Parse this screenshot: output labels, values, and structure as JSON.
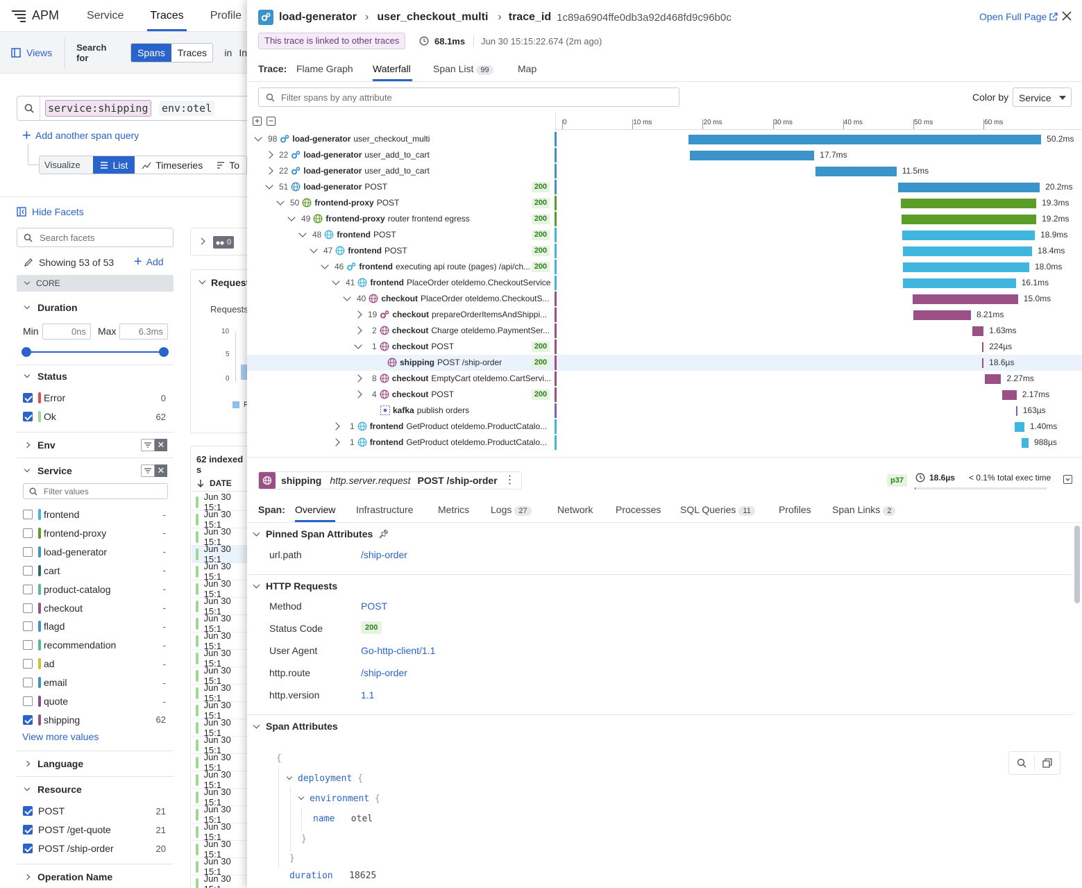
{
  "left": {
    "app_name": "APM",
    "nav": [
      "Service",
      "Traces",
      "Profile"
    ],
    "views_label": "Views",
    "search_for_label": "Search for",
    "search_for_options": [
      "Spans",
      "Traces"
    ],
    "in_label": "in",
    "in_value": "In",
    "query_tokens": [
      {
        "key": "service",
        "value": "shipping"
      },
      {
        "key": "env",
        "value": "otel"
      }
    ],
    "add_query_label": "Add another span query",
    "visualize_as_label": "Visualize as",
    "visualize_options": [
      "List",
      "Timeseries",
      "To"
    ],
    "hide_facets_label": "Hide Facets",
    "search_facets_placeholder": "Search facets",
    "showing_label": "Showing 53 of 53",
    "add_label": "Add",
    "core_label": "CORE",
    "duration": {
      "title": "Duration",
      "min_label": "Min",
      "min_value": "0ns",
      "max_label": "Max",
      "max_value": "6.3ms"
    },
    "status": {
      "title": "Status",
      "items": [
        {
          "label": "Error",
          "count": "0",
          "color": "#e5484d",
          "checked": true
        },
        {
          "label": "Ok",
          "count": "62",
          "color": "#9ed893",
          "checked": true
        }
      ]
    },
    "env_title": "Env",
    "service": {
      "title": "Service",
      "filter_placeholder": "Filter values",
      "items": [
        {
          "label": "frontend",
          "count": "-",
          "color": "#40b5de",
          "checked": false
        },
        {
          "label": "frontend-proxy",
          "count": "-",
          "color": "#5c9c28",
          "checked": false
        },
        {
          "label": "load-generator",
          "count": "-",
          "color": "#3a93c9",
          "checked": false
        },
        {
          "label": "cart",
          "count": "-",
          "color": "#2f6a6a",
          "checked": false
        },
        {
          "label": "product-catalog",
          "count": "-",
          "color": "#58b8a0",
          "checked": false
        },
        {
          "label": "checkout",
          "count": "-",
          "color": "#9a4f86",
          "checked": false
        },
        {
          "label": "flagd",
          "count": "-",
          "color": "#3a93c9",
          "checked": false
        },
        {
          "label": "recommendation",
          "count": "-",
          "color": "#58b8a0",
          "checked": false
        },
        {
          "label": "ad",
          "count": "-",
          "color": "#c8c52f",
          "checked": false
        },
        {
          "label": "email",
          "count": "-",
          "color": "#3a93c9",
          "checked": false
        },
        {
          "label": "quote",
          "count": "-",
          "color": "#8a4a9a",
          "checked": false
        },
        {
          "label": "shipping",
          "count": "62",
          "color": "#9a4f86",
          "checked": true
        }
      ],
      "view_more": "View more values"
    },
    "language_title": "Language",
    "resource": {
      "title": "Resource",
      "items": [
        {
          "label": "POST",
          "count": "21",
          "checked": true
        },
        {
          "label": "POST /get-quote",
          "count": "21",
          "checked": true
        },
        {
          "label": "POST /ship-order",
          "count": "20",
          "checked": true
        }
      ]
    },
    "operation_name_title": "Operation Name",
    "mid": {
      "badge_count": "0",
      "requests_title": "Requests",
      "requests_label": "Requests",
      "y_ticks": [
        "10",
        "5",
        "0"
      ],
      "legend": "R",
      "indexed_label": "62 indexed s",
      "date_header": "DATE",
      "date_rows": [
        "Jun 30 15:1",
        "Jun 30 15:1",
        "Jun 30 15:1",
        "Jun 30 15:1",
        "Jun 30 15:1",
        "Jun 30 15:1",
        "Jun 30 15:1",
        "Jun 30 15:1",
        "Jun 30 15:1",
        "Jun 30 15:1",
        "Jun 30 15:1",
        "Jun 30 15:1",
        "Jun 30 15:1",
        "Jun 30 15:1",
        "Jun 30 15:1",
        "Jun 30 15:1",
        "Jun 30 15:1",
        "Jun 30 15:1",
        "Jun 30 15:1",
        "Jun 30 15:1",
        "Jun 30 15:1",
        "Jun 30 15:1",
        "Jun 30 15:1",
        "Jun 30 15:1"
      ]
    }
  },
  "panel": {
    "service": "load-generator",
    "operation": "user_checkout_multi",
    "trace_id_label": "trace_id",
    "trace_id": "1c89a6904ffe0db3a92d468fd9c96b0c",
    "open_full_page": "Open Full Page",
    "linked_notice": "This trace is linked to other traces",
    "duration": "68.1ms",
    "timestamp": "Jun 30 15:15:22.674 (2m ago)",
    "trace_label": "Trace:",
    "tabs": [
      {
        "label": "Flame Graph"
      },
      {
        "label": "Waterfall"
      },
      {
        "label": "Span List",
        "badge": "99"
      },
      {
        "label": "Map"
      }
    ],
    "filter_placeholder": "Filter spans by any attribute",
    "color_by_label": "Color by",
    "color_by_value": "Service",
    "axis_ticks": [
      "0",
      "10 ms",
      "20 ms",
      "30 ms",
      "40 ms",
      "50 ms",
      "60 ms"
    ],
    "spans": [
      {
        "depth": 0,
        "exp": "down",
        "count": "98",
        "svc": "load-generator",
        "res": "user_checkout_multi",
        "status": "",
        "icon": "gears",
        "color": "#3a93c9",
        "start": 18.0,
        "end": 68.2,
        "dur": "50.2ms"
      },
      {
        "depth": 1,
        "exp": "right",
        "count": "22",
        "svc": "load-generator",
        "res": "user_add_to_cart",
        "status": "",
        "icon": "gears",
        "color": "#3a93c9",
        "start": 18.2,
        "end": 35.9,
        "dur": "17.7ms"
      },
      {
        "depth": 1,
        "exp": "right",
        "count": "22",
        "svc": "load-generator",
        "res": "user_add_to_cart",
        "status": "",
        "icon": "gears",
        "color": "#3a93c9",
        "start": 36.1,
        "end": 47.6,
        "dur": "11.5ms"
      },
      {
        "depth": 1,
        "exp": "down",
        "count": "51",
        "svc": "load-generator",
        "res": "POST",
        "status": "200",
        "icon": "globe",
        "color": "#3a93c9",
        "start": 47.8,
        "end": 68.0,
        "dur": "20.2ms"
      },
      {
        "depth": 2,
        "exp": "down",
        "count": "50",
        "svc": "frontend-proxy",
        "res": "POST",
        "status": "200",
        "icon": "globe",
        "color": "#5c9c28",
        "start": 48.2,
        "end": 67.5,
        "dur": "19.3ms"
      },
      {
        "depth": 3,
        "exp": "down",
        "count": "49",
        "svc": "frontend-proxy",
        "res": "router frontend egress",
        "status": "200",
        "icon": "globe",
        "color": "#5c9c28",
        "start": 48.3,
        "end": 67.5,
        "dur": "19.2ms"
      },
      {
        "depth": 4,
        "exp": "down",
        "count": "48",
        "svc": "frontend",
        "res": "POST",
        "status": "200",
        "icon": "globe",
        "color": "#40b5de",
        "start": 48.4,
        "end": 67.3,
        "dur": "18.9ms"
      },
      {
        "depth": 5,
        "exp": "down",
        "count": "47",
        "svc": "frontend",
        "res": "POST",
        "status": "200",
        "icon": "globe",
        "color": "#40b5de",
        "start": 48.5,
        "end": 66.9,
        "dur": "18.4ms"
      },
      {
        "depth": 6,
        "exp": "down",
        "count": "46",
        "svc": "frontend",
        "res": "executing api route (pages) /api/ch...",
        "status": "200",
        "icon": "gears",
        "color": "#40b5de",
        "start": 48.5,
        "end": 66.5,
        "dur": "18.0ms"
      },
      {
        "depth": 7,
        "exp": "down",
        "count": "41",
        "svc": "frontend",
        "res": "PlaceOrder oteldemo.CheckoutService",
        "status": "",
        "icon": "globe",
        "color": "#40b5de",
        "start": 48.5,
        "end": 64.6,
        "dur": "16.1ms"
      },
      {
        "depth": 8,
        "exp": "down",
        "count": "40",
        "svc": "checkout",
        "res": "PlaceOrder oteldemo.CheckoutS...",
        "status": "",
        "icon": "globe",
        "color": "#9a4f86",
        "start": 49.9,
        "end": 64.9,
        "dur": "15.0ms"
      },
      {
        "depth": 9,
        "exp": "right",
        "count": "19",
        "svc": "checkout",
        "res": "prepareOrderItemsAndShippi...",
        "status": "",
        "icon": "gears",
        "color": "#9a4f86",
        "start": 50.0,
        "end": 58.2,
        "dur": "8.21ms"
      },
      {
        "depth": 9,
        "exp": "right",
        "count": "2",
        "svc": "checkout",
        "res": "Charge oteldemo.PaymentSer...",
        "status": "",
        "icon": "globe",
        "color": "#9a4f86",
        "start": 58.4,
        "end": 60.0,
        "dur": "1.63ms"
      },
      {
        "depth": 9,
        "exp": "down",
        "count": "1",
        "svc": "checkout",
        "res": "POST",
        "status": "200",
        "icon": "globe",
        "color": "#9a4f86",
        "start": 59.8,
        "end": 60.0,
        "dur": "224µs"
      },
      {
        "depth": 10,
        "exp": "",
        "count": "",
        "svc": "shipping",
        "res": "POST /ship-order",
        "status": "200",
        "icon": "globe",
        "color": "#9a4f86",
        "start": 59.8,
        "end": 59.95,
        "dur": "18.6µs",
        "selected": true
      },
      {
        "depth": 9,
        "exp": "right",
        "count": "8",
        "svc": "checkout",
        "res": "EmptyCart oteldemo.CartServi...",
        "status": "",
        "icon": "globe",
        "color": "#9a4f86",
        "start": 60.2,
        "end": 62.5,
        "dur": "2.27ms"
      },
      {
        "depth": 9,
        "exp": "right",
        "count": "4",
        "svc": "checkout",
        "res": "POST",
        "status": "200",
        "icon": "globe",
        "color": "#9a4f86",
        "start": 62.6,
        "end": 64.7,
        "dur": "2.17ms"
      },
      {
        "depth": 9,
        "exp": "",
        "count": "",
        "svc": "kafka",
        "res": "publish orders",
        "status": "",
        "icon": "kafka",
        "color": "#7b5cc8",
        "start": 64.6,
        "end": 64.75,
        "dur": "163µs"
      },
      {
        "depth": 7,
        "exp": "right",
        "count": "1",
        "svc": "frontend",
        "res": "GetProduct oteldemo.ProductCatalo...",
        "status": "",
        "icon": "globe",
        "color": "#40b5de",
        "start": 64.4,
        "end": 65.8,
        "dur": "1.40ms"
      },
      {
        "depth": 7,
        "exp": "right",
        "count": "1",
        "svc": "frontend",
        "res": "GetProduct oteldemo.ProductCatalo...",
        "status": "",
        "icon": "globe",
        "color": "#40b5de",
        "start": 65.4,
        "end": 66.4,
        "dur": "988µs"
      }
    ],
    "detail": {
      "service": "shipping",
      "op": "http.server.request",
      "resource": "POST /ship-order",
      "percentile": "p37",
      "duration": "18.6µs",
      "exec": "< 0.1% total exec time",
      "span_label": "Span:",
      "tabs": [
        {
          "label": "Overview"
        },
        {
          "label": "Infrastructure"
        },
        {
          "label": "Metrics"
        },
        {
          "label": "Logs",
          "badge": "27"
        },
        {
          "label": "Network"
        },
        {
          "label": "Processes"
        },
        {
          "label": "SQL Queries",
          "badge": "11"
        },
        {
          "label": "Profiles"
        },
        {
          "label": "Span Links",
          "badge": "2"
        }
      ],
      "pinned_title": "Pinned Span Attributes",
      "pinned": [
        {
          "k": "url.path",
          "v": "/ship-order"
        }
      ],
      "http_title": "HTTP Requests",
      "http": [
        {
          "k": "Method",
          "v": "POST"
        },
        {
          "k": "Status Code",
          "v": "200"
        },
        {
          "k": "User Agent",
          "v": "Go-http-client/1.1"
        },
        {
          "k": "http.route",
          "v": "/ship-order"
        },
        {
          "k": "http.version",
          "v": "1.1"
        }
      ],
      "span_attrs_title": "Span Attributes",
      "json": {
        "open": "{",
        "deployment_key": "deployment",
        "environment_key": "environment",
        "name_key": "name",
        "name_val": "otel",
        "duration_key": "duration",
        "duration_val": "18625"
      }
    }
  }
}
